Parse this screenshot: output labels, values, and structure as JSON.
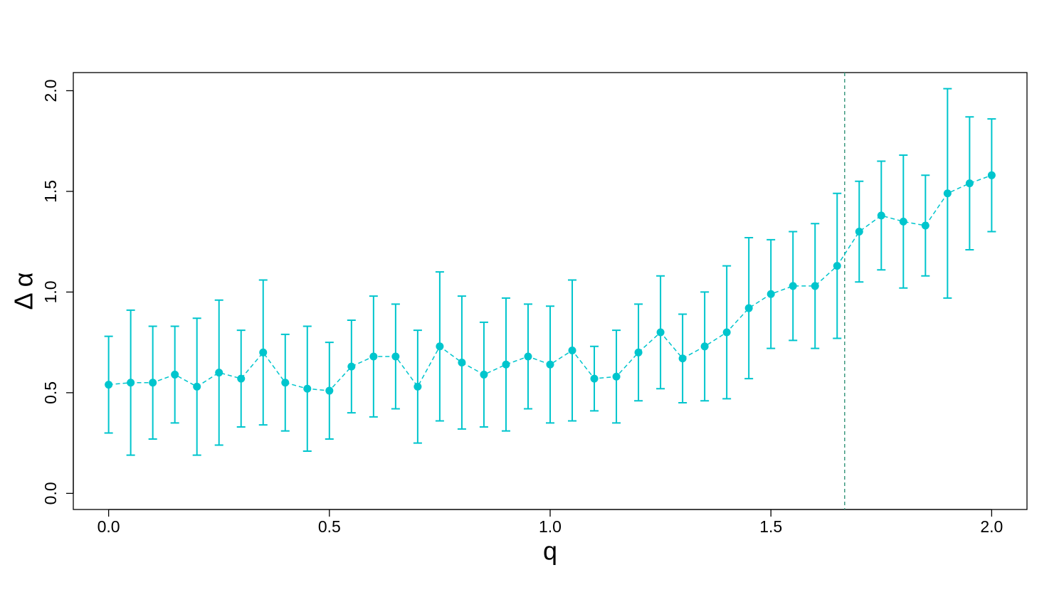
{
  "chart_data": {
    "type": "errorbar-line",
    "x_label": "q",
    "y_label": "Δ α",
    "color": "#00c5cd",
    "vline": 1.667,
    "vline_color": "#3e9a80",
    "x": [
      0,
      0.05,
      0.1,
      0.15,
      0.2,
      0.25,
      0.3,
      0.35,
      0.4,
      0.45,
      0.5,
      0.55,
      0.6,
      0.65,
      0.7,
      0.75,
      0.8,
      0.85,
      0.9,
      0.95,
      1.0,
      1.05,
      1.1,
      1.15,
      1.2,
      1.25,
      1.3,
      1.35,
      1.4,
      1.45,
      1.5,
      1.55,
      1.6,
      1.65,
      1.7,
      1.75,
      1.8,
      1.85,
      1.9,
      1.95,
      2.0
    ],
    "values": [
      0.54,
      0.55,
      0.55,
      0.59,
      0.53,
      0.6,
      0.57,
      0.7,
      0.55,
      0.52,
      0.51,
      0.63,
      0.68,
      0.68,
      0.53,
      0.73,
      0.65,
      0.59,
      0.64,
      0.68,
      0.64,
      0.71,
      0.57,
      0.58,
      0.7,
      0.8,
      0.67,
      0.73,
      0.8,
      0.92,
      0.99,
      1.03,
      1.03,
      1.13,
      1.3,
      1.38,
      1.35,
      1.33,
      1.49,
      1.54,
      1.58
    ],
    "errors": [
      0.24,
      0.36,
      0.28,
      0.24,
      0.34,
      0.36,
      0.24,
      0.36,
      0.24,
      0.31,
      0.24,
      0.23,
      0.3,
      0.26,
      0.28,
      0.37,
      0.33,
      0.26,
      0.33,
      0.26,
      0.29,
      0.35,
      0.16,
      0.23,
      0.24,
      0.28,
      0.22,
      0.27,
      0.33,
      0.35,
      0.27,
      0.27,
      0.31,
      0.36,
      0.25,
      0.27,
      0.33,
      0.25,
      0.52,
      0.33,
      0.28
    ],
    "xlim": [
      -0.08,
      2.08
    ],
    "ylim": [
      -0.08,
      2.09
    ],
    "xticks": [
      {
        "value": 0,
        "label": "0.0"
      },
      {
        "value": 0.5,
        "label": "0.5"
      },
      {
        "value": 1,
        "label": "1.0"
      },
      {
        "value": 1.5,
        "label": "1.5"
      },
      {
        "value": 2,
        "label": "2.0"
      }
    ],
    "yticks": [
      {
        "value": 0,
        "label": "0.0"
      },
      {
        "value": 0.5,
        "label": "0.5"
      },
      {
        "value": 1,
        "label": "1.0"
      },
      {
        "value": 1.5,
        "label": "1.5"
      },
      {
        "value": 2,
        "label": "2.0"
      }
    ]
  }
}
